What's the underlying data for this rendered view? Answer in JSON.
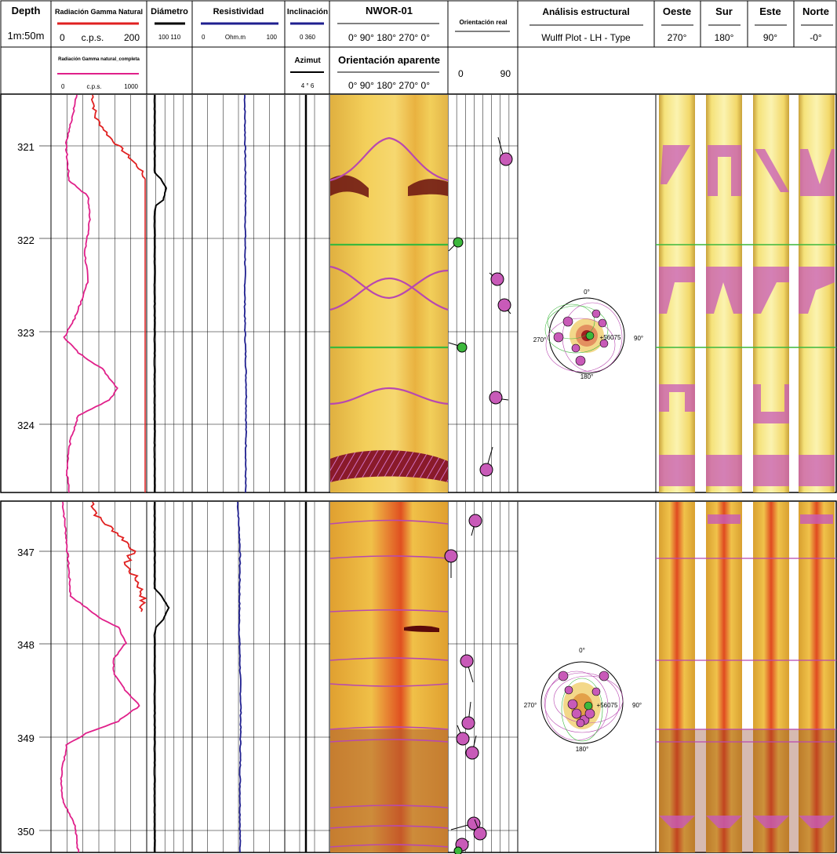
{
  "header": {
    "depth": {
      "title": "Depth",
      "scale": "1m:50m"
    },
    "gamma": {
      "title": "Radiación Gamma Natural",
      "min": "0",
      "unit": "c.p.s.",
      "max": "200",
      "title2": "Radiación Gamma natural_completa",
      "min2": "0",
      "unit2": "c.p.s.",
      "max2": "1000"
    },
    "diametro": {
      "title": "Diámetro",
      "scale": "100 110"
    },
    "resistividad": {
      "title": "Resistividad",
      "min": "0",
      "unit": "Ohm.m",
      "max": "100"
    },
    "inclinacion": {
      "title": "Inclinación",
      "scale": "0  360",
      "title2": "Azimut",
      "scale2": "4  °  6"
    },
    "nwor": {
      "title": "NWOR-01",
      "ticks": "0° 90° 180° 270° 0°",
      "title2": "Orientación aparente",
      "ticks2": "0° 90° 180° 270° 0°"
    },
    "orient_real": {
      "title": "Orientación real",
      "min": "0",
      "max": "90"
    },
    "analisis": {
      "title": "Análisis estructural",
      "subtitle": "Wulff Plot - LH - Type"
    },
    "oeste": {
      "title": "Oeste",
      "deg": "270°"
    },
    "sur": {
      "title": "Sur",
      "deg": "180°"
    },
    "este": {
      "title": "Este",
      "deg": "90°"
    },
    "norte": {
      "title": "Norte",
      "deg": "-0°"
    }
  },
  "panel1": {
    "depth_labels": [
      "321",
      "322",
      "323",
      "324"
    ],
    "wulff": {
      "north": "0°",
      "east": "90°",
      "south": "180°",
      "west": "270°",
      "center_label": "+56075"
    }
  },
  "panel2": {
    "depth_labels": [
      "347",
      "348",
      "349",
      "350"
    ],
    "wulff": {
      "north": "0°",
      "east": "90°",
      "south": "180°",
      "west": "270°",
      "center_label": "+56075"
    }
  },
  "colors": {
    "gamma": "#e02020",
    "gamma_full": "#e0208a",
    "diameter": "#000000",
    "resistivity": "#1f1f8f",
    "sinusoid_pink": "#b848b0",
    "sinusoid_green": "#3cb83c",
    "tadpole_fill": "#c85ab8"
  }
}
